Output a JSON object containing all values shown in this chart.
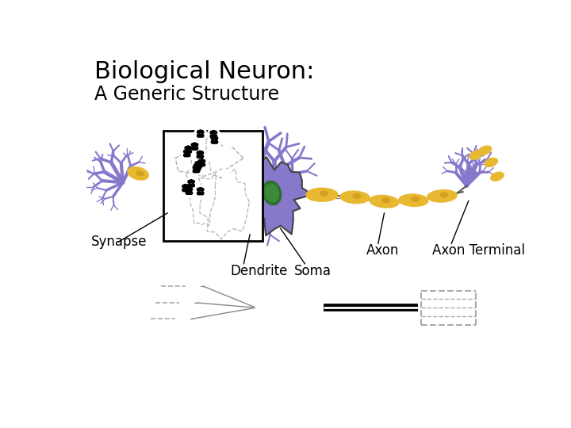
{
  "title_line1": "Biological Neuron:",
  "title_line2": "A Generic Structure",
  "title_fontsize": 22,
  "subtitle_fontsize": 17,
  "bg_color": "#ffffff",
  "purple": "#8878CC",
  "gold": "#E8B830",
  "gold_edge": "#B8902A",
  "gold_inner": "#D4A020",
  "green_dark": "#2D6E2D",
  "green_mid": "#3A8A3A",
  "label_synapse": "Synapse",
  "label_dendrite": "Dendrite",
  "label_soma": "Soma",
  "label_axon": "Axon",
  "label_axon_terminal": "Axon Terminal",
  "label_fontsize": 12
}
